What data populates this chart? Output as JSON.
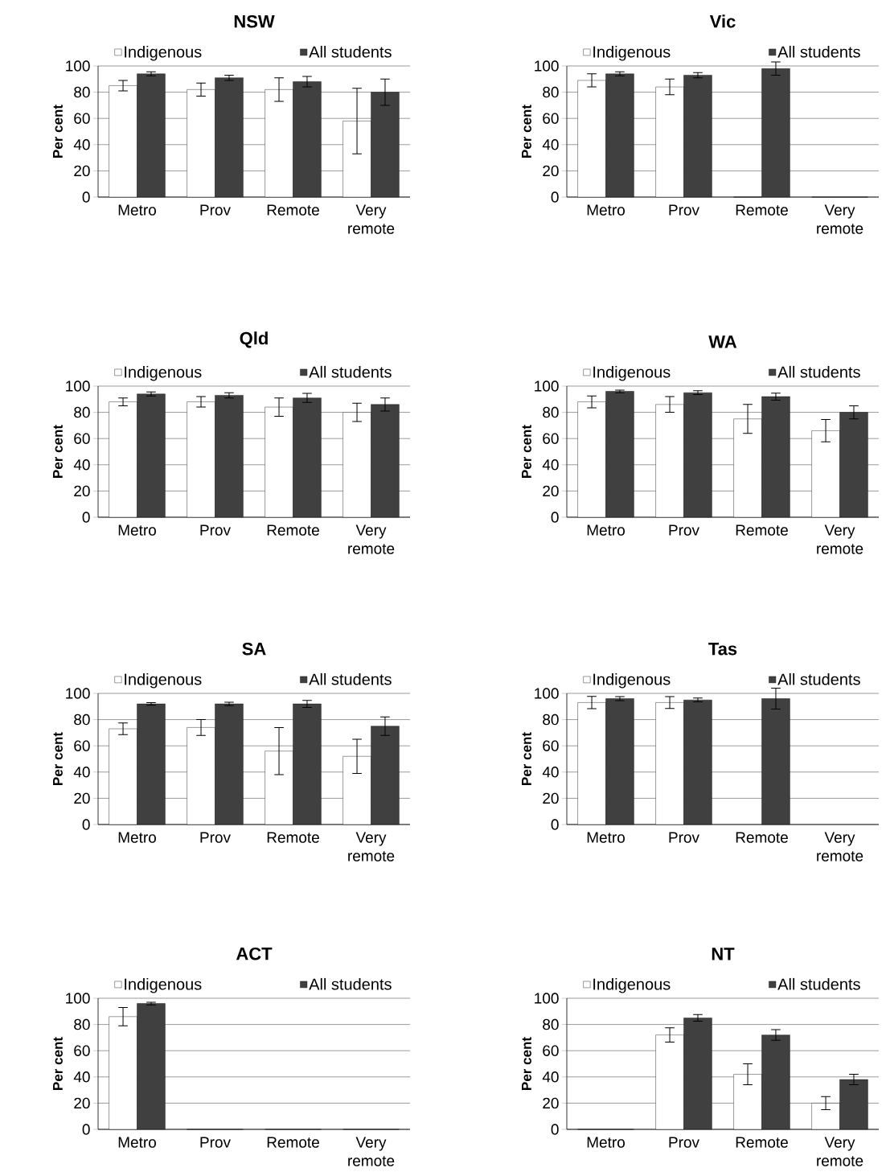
{
  "chart_data": [
    {
      "type": "bar",
      "title": "NSW",
      "ylabel": "Per cent",
      "categories": [
        "Metro",
        "Prov",
        "Remote",
        "Very remote"
      ],
      "ylim": [
        0,
        100
      ],
      "yticks": [
        0,
        20,
        40,
        60,
        80,
        100
      ],
      "grid": "y",
      "legend": "top",
      "series": [
        {
          "name": "Indigenous",
          "color": "#ffffff",
          "values": [
            85,
            82,
            82,
            58
          ],
          "errors": [
            4,
            5,
            9,
            25
          ]
        },
        {
          "name": "All students",
          "color": "#404040",
          "values": [
            94,
            91,
            88,
            80
          ],
          "errors": [
            1.5,
            2,
            4,
            10
          ]
        }
      ]
    },
    {
      "type": "bar",
      "title": "Vic",
      "ylabel": "Per cent",
      "categories": [
        "Metro",
        "Prov",
        "Remote",
        "Very remote"
      ],
      "ylim": [
        0,
        100
      ],
      "yticks": [
        0,
        20,
        40,
        60,
        80,
        100
      ],
      "grid": "y",
      "legend": "top",
      "series": [
        {
          "name": "Indigenous",
          "color": "#ffffff",
          "values": [
            89,
            84,
            0,
            0
          ],
          "errors": [
            5,
            6,
            null,
            null
          ]
        },
        {
          "name": "All students",
          "color": "#404040",
          "values": [
            94,
            93,
            98,
            0
          ],
          "errors": [
            1.5,
            2,
            5,
            null
          ]
        }
      ]
    },
    {
      "type": "bar",
      "title": "Qld",
      "ylabel": "Per cent",
      "categories": [
        "Metro",
        "Prov",
        "Remote",
        "Very remote"
      ],
      "ylim": [
        0,
        100
      ],
      "yticks": [
        0,
        20,
        40,
        60,
        80,
        100
      ],
      "grid": "y",
      "legend": "top",
      "series": [
        {
          "name": "Indigenous",
          "color": "#ffffff",
          "values": [
            88,
            88,
            84,
            80
          ],
          "errors": [
            3,
            4,
            7,
            7
          ]
        },
        {
          "name": "All students",
          "color": "#404040",
          "values": [
            94,
            93,
            91,
            86
          ],
          "errors": [
            1.5,
            2,
            3.5,
            5
          ]
        }
      ]
    },
    {
      "type": "bar",
      "title": "WA",
      "ylabel": "Per cent",
      "categories": [
        "Metro",
        "Prov",
        "Remote",
        "Very remote"
      ],
      "ylim": [
        0,
        100
      ],
      "yticks": [
        0,
        20,
        40,
        60,
        80,
        100
      ],
      "grid": "y",
      "legend": "top",
      "series": [
        {
          "name": "Indigenous",
          "color": "#ffffff",
          "values": [
            88,
            86,
            75,
            66
          ],
          "errors": [
            4.5,
            6,
            11,
            8.5
          ]
        },
        {
          "name": "All students",
          "color": "#404040",
          "values": [
            96,
            95,
            92,
            80
          ],
          "errors": [
            1,
            1.5,
            2.7,
            5
          ]
        }
      ]
    },
    {
      "type": "bar",
      "title": "SA",
      "ylabel": "Per cent",
      "categories": [
        "Metro",
        "Prov",
        "Remote",
        "Very remote"
      ],
      "ylim": [
        0,
        100
      ],
      "yticks": [
        0,
        20,
        40,
        60,
        80,
        100
      ],
      "grid": "y",
      "legend": "top",
      "series": [
        {
          "name": "Indigenous",
          "color": "#ffffff",
          "values": [
            73,
            74,
            56,
            52
          ],
          "errors": [
            4.5,
            6,
            18,
            13
          ]
        },
        {
          "name": "All students",
          "color": "#404040",
          "values": [
            92,
            92,
            92,
            75
          ],
          "errors": [
            1,
            1.3,
            2.7,
            7
          ]
        }
      ]
    },
    {
      "type": "bar",
      "title": "Tas",
      "ylabel": "Per cent",
      "categories": [
        "Metro",
        "Prov",
        "Remote",
        "Very remote"
      ],
      "ylim": [
        0,
        100
      ],
      "yticks": [
        0,
        20,
        40,
        60,
        80,
        100
      ],
      "grid": "y",
      "legend": "top",
      "series": [
        {
          "name": "Indigenous",
          "color": "#ffffff",
          "values": [
            93,
            93,
            null,
            null
          ],
          "errors": [
            4.7,
            4.5,
            null,
            null
          ]
        },
        {
          "name": "All students",
          "color": "#404040",
          "values": [
            96,
            95,
            96,
            null
          ],
          "errors": [
            1.5,
            1.5,
            8,
            null
          ]
        }
      ]
    },
    {
      "type": "bar",
      "title": "ACT",
      "ylabel": "Per cent",
      "categories": [
        "Metro",
        "Prov",
        "Remote",
        "Very remote"
      ],
      "ylim": [
        0,
        100
      ],
      "yticks": [
        0,
        20,
        40,
        60,
        80,
        100
      ],
      "grid": "y",
      "legend": "top",
      "series": [
        {
          "name": "Indigenous",
          "color": "#ffffff",
          "values": [
            86,
            0,
            0,
            0
          ],
          "errors": [
            7,
            null,
            null,
            null
          ]
        },
        {
          "name": "All students",
          "color": "#404040",
          "values": [
            96,
            0,
            0,
            0
          ],
          "errors": [
            1,
            null,
            null,
            null
          ]
        }
      ]
    },
    {
      "type": "bar",
      "title": "NT",
      "ylabel": "Per cent",
      "categories": [
        "Metro",
        "Prov",
        "Remote",
        "Very remote"
      ],
      "ylim": [
        0,
        100
      ],
      "yticks": [
        0,
        20,
        40,
        60,
        80,
        100
      ],
      "grid": "y",
      "legend": "top",
      "series": [
        {
          "name": "Indigenous",
          "color": "#ffffff",
          "values": [
            0,
            72,
            42,
            20
          ],
          "errors": [
            null,
            5.5,
            8,
            5
          ]
        },
        {
          "name": "All students",
          "color": "#404040",
          "values": [
            0,
            85,
            72,
            38
          ],
          "errors": [
            null,
            2.5,
            4,
            4
          ]
        }
      ]
    }
  ]
}
